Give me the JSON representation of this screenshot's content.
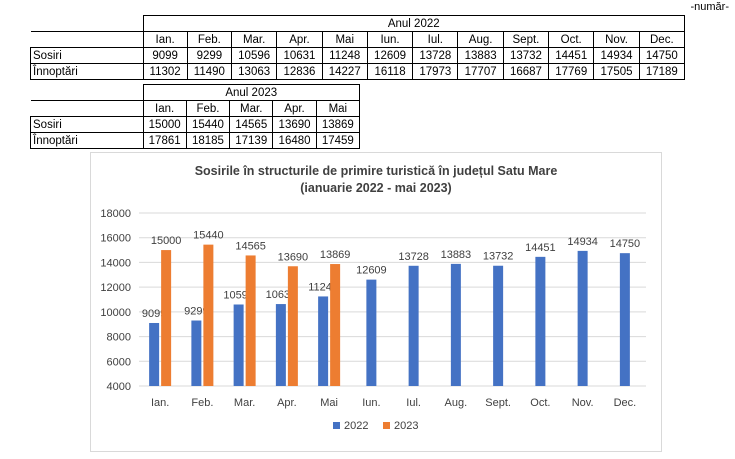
{
  "unit_label": "-număr-",
  "table_2022": {
    "year_header": "Anul 2022",
    "months": [
      "Ian.",
      "Feb.",
      "Mar.",
      "Apr.",
      "Mai",
      "Iun.",
      "Iul.",
      "Aug.",
      "Sept.",
      "Oct.",
      "Nov.",
      "Dec."
    ],
    "rows": [
      {
        "label": "Sosiri",
        "values": [
          "9099",
          "9299",
          "10596",
          "10631",
          "11248",
          "12609",
          "13728",
          "13883",
          "13732",
          "14451",
          "14934",
          "14750"
        ]
      },
      {
        "label": "Înnoptări",
        "values": [
          "11302",
          "11490",
          "13063",
          "12836",
          "14227",
          "16118",
          "17973",
          "17707",
          "16687",
          "17769",
          "17505",
          "17189"
        ]
      }
    ]
  },
  "table_2023": {
    "year_header": "Anul 2023",
    "months": [
      "Ian.",
      "Feb.",
      "Mar.",
      "Apr.",
      "Mai"
    ],
    "rows": [
      {
        "label": "Sosiri",
        "values": [
          "15000",
          "15440",
          "14565",
          "13690",
          "13869"
        ]
      },
      {
        "label": "Înnoptări",
        "values": [
          "17861",
          "18185",
          "17139",
          "16480",
          "17459"
        ]
      }
    ]
  },
  "chart_data": {
    "type": "bar",
    "title": "Sosirile în structurile de primire turistică în județul Satu Mare",
    "subtitle": "(ianuarie 2022 - mai 2023)",
    "categories": [
      "Ian.",
      "Feb.",
      "Mar.",
      "Apr.",
      "Mai",
      "Iun.",
      "Iul.",
      "Aug.",
      "Sept.",
      "Oct.",
      "Nov.",
      "Dec."
    ],
    "series": [
      {
        "name": "2022",
        "color": "#4472c4",
        "values": [
          9099,
          9299,
          10596,
          10631,
          11248,
          12609,
          13728,
          13883,
          13732,
          14451,
          14934,
          14750
        ]
      },
      {
        "name": "2023",
        "color": "#ed7d31",
        "values": [
          15000,
          15440,
          14565,
          13690,
          13869,
          null,
          null,
          null,
          null,
          null,
          null,
          null
        ]
      }
    ],
    "ylim": [
      4000,
      18000
    ],
    "yticks": [
      4000,
      6000,
      8000,
      10000,
      12000,
      14000,
      16000,
      18000
    ],
    "grid": true,
    "legend": "bottom",
    "xlabel": "",
    "ylabel": ""
  }
}
